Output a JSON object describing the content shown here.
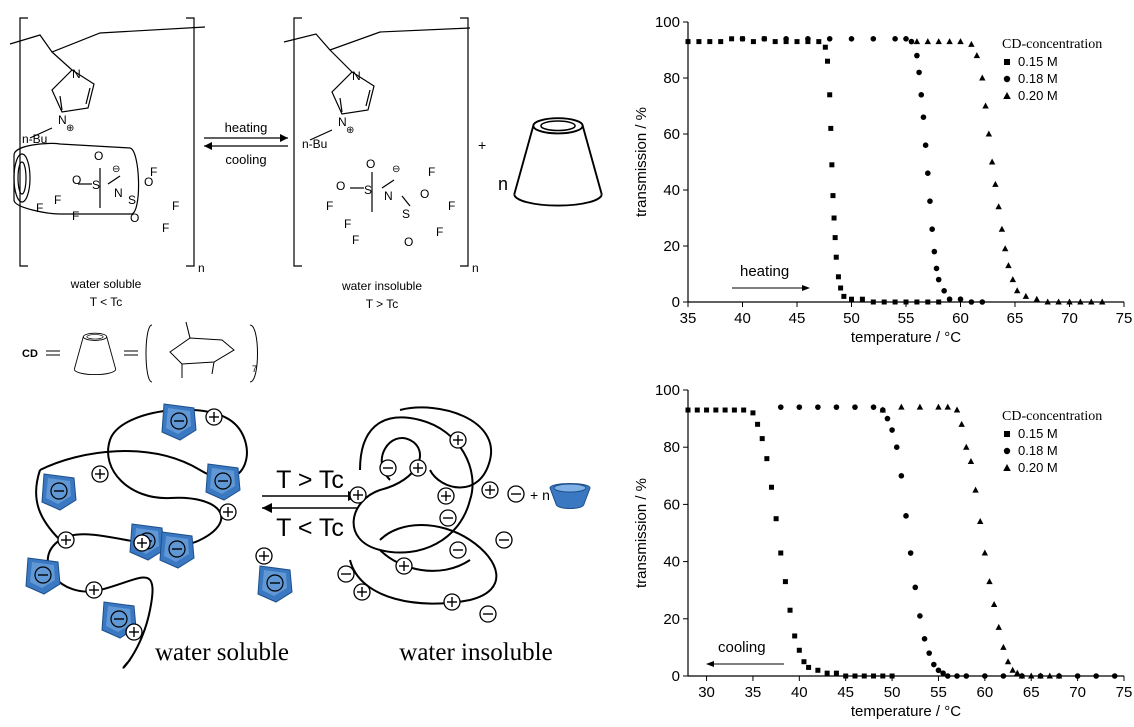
{
  "scheme": {
    "heating": "heating",
    "cooling": "cooling",
    "nbu": "n-Bu",
    "water_soluble": "water soluble",
    "t_lt_tc": "T < Tc",
    "water_insoluble": "water insoluble",
    "t_gt_tc": "T > Tc",
    "plus": "+",
    "n": "n",
    "cd": "CD",
    "sugar_subscript": "7",
    "cartoon_forward": "T > Tc",
    "cartoon_backward": "T < Tc",
    "cartoon_water_soluble": "water soluble",
    "cartoon_water_insoluble": "water insoluble",
    "cartoon_plus_n": "+ n",
    "colors": {
      "cd_blue": "#3a78c2",
      "cd_blue_light": "#7fb0e6"
    }
  },
  "chart_data": [
    {
      "type": "scatter",
      "xlabel": "temperature / °C",
      "ylabel": "transmission / %",
      "xlim": [
        35,
        75
      ],
      "ylim": [
        0,
        100
      ],
      "xticks": [
        35,
        40,
        45,
        50,
        55,
        60,
        65,
        70,
        75
      ],
      "yticks": [
        0,
        20,
        40,
        60,
        80,
        100
      ],
      "legend_title": "CD-concentration",
      "legend_position": "top-right",
      "annotation": "heating",
      "annotation_arrow": "right",
      "series": [
        {
          "name": "0.15 M",
          "marker": "square",
          "x": [
            35,
            36,
            37,
            38,
            39,
            40,
            41,
            42,
            43,
            44,
            45,
            46,
            47,
            47.6,
            47.8,
            48,
            48.1,
            48.2,
            48.3,
            48.4,
            48.5,
            48.6,
            48.8,
            49,
            49.3,
            50,
            51,
            52,
            53,
            54,
            55,
            56,
            57,
            58
          ],
          "y": [
            93,
            93,
            93,
            93,
            94,
            94,
            93,
            94,
            93,
            93,
            93,
            93,
            93,
            91,
            86,
            74,
            62,
            49,
            38,
            30,
            23,
            16,
            9,
            5,
            2,
            1,
            1,
            0,
            0,
            0,
            0,
            0,
            0,
            0
          ]
        },
        {
          "name": "0.18 M",
          "marker": "circle",
          "x": [
            40,
            42,
            44,
            46,
            48,
            50,
            52,
            54,
            55,
            55.5,
            56,
            56.2,
            56.4,
            56.6,
            56.8,
            57,
            57.2,
            57.4,
            57.6,
            57.8,
            58,
            58.5,
            59,
            60,
            61,
            62
          ],
          "y": [
            94,
            94,
            94,
            94,
            94,
            94,
            94,
            94,
            94,
            93,
            88,
            82,
            74,
            66,
            56,
            46,
            36,
            26,
            18,
            12,
            8,
            4,
            1,
            1,
            0,
            0
          ],
          "y_note": ""
        },
        {
          "name": "0.20 M",
          "marker": "triangle",
          "x": [
            56,
            57,
            58,
            59,
            60,
            61,
            61.5,
            62,
            62.3,
            62.6,
            62.9,
            63.2,
            63.5,
            63.8,
            64.1,
            64.4,
            64.8,
            65.2,
            66,
            67,
            68,
            69,
            70,
            71,
            72,
            73
          ],
          "y": [
            93,
            93,
            93,
            93,
            93,
            92,
            88,
            80,
            70,
            60,
            50,
            42,
            34,
            26,
            19,
            13,
            8,
            4,
            2,
            1,
            0,
            0,
            0,
            0,
            0,
            0
          ]
        }
      ]
    },
    {
      "type": "scatter",
      "xlabel": "temperature / °C",
      "ylabel": "transmission / %",
      "xlim": [
        28,
        75
      ],
      "ylim": [
        0,
        100
      ],
      "xticks": [
        30,
        35,
        40,
        45,
        50,
        55,
        60,
        65,
        70,
        75
      ],
      "yticks": [
        0,
        20,
        40,
        60,
        80,
        100
      ],
      "legend_title": "CD-concentration",
      "legend_position": "top-right",
      "annotation": "cooling",
      "annotation_arrow": "left",
      "series": [
        {
          "name": "0.15 M",
          "marker": "square",
          "x": [
            28,
            29,
            30,
            31,
            32,
            33,
            34,
            35,
            35.5,
            36,
            36.5,
            37,
            37.5,
            38,
            38.5,
            39,
            39.5,
            40,
            40.5,
            41,
            42,
            43,
            44,
            45,
            46,
            47,
            48,
            49,
            50
          ],
          "y": [
            93,
            93,
            93,
            93,
            93,
            93,
            93,
            92,
            88,
            83,
            76,
            66,
            55,
            43,
            33,
            23,
            14,
            9,
            5,
            3,
            2,
            1,
            1,
            0,
            0,
            0,
            0,
            0,
            0
          ]
        },
        {
          "name": "0.18 M",
          "marker": "circle",
          "x": [
            38,
            40,
            42,
            44,
            46,
            48,
            49,
            49.5,
            50,
            50.5,
            51,
            51.5,
            52,
            52.5,
            53,
            53.5,
            54,
            54.5,
            55,
            55.5,
            56,
            57,
            58,
            60,
            62,
            64,
            66,
            68,
            70,
            72,
            74
          ],
          "y": [
            94,
            94,
            94,
            94,
            94,
            94,
            93,
            90,
            86,
            80,
            70,
            56,
            43,
            31,
            21,
            13,
            8,
            4,
            2,
            1,
            0,
            0,
            0,
            0,
            0,
            0,
            0,
            0,
            0,
            0,
            0
          ]
        },
        {
          "name": "0.20 M",
          "marker": "triangle",
          "x": [
            49,
            51,
            53,
            55,
            56,
            57,
            57.5,
            58,
            58.5,
            59,
            59.5,
            60,
            60.5,
            61,
            61.5,
            62,
            62.5,
            63,
            63.5,
            64,
            65,
            66,
            67,
            68
          ],
          "y": [
            93,
            94,
            94,
            94,
            94,
            93,
            88,
            80,
            75,
            65,
            54,
            43,
            33,
            25,
            17,
            10,
            5,
            2,
            1,
            0,
            0,
            0,
            0,
            0
          ]
        }
      ]
    }
  ]
}
